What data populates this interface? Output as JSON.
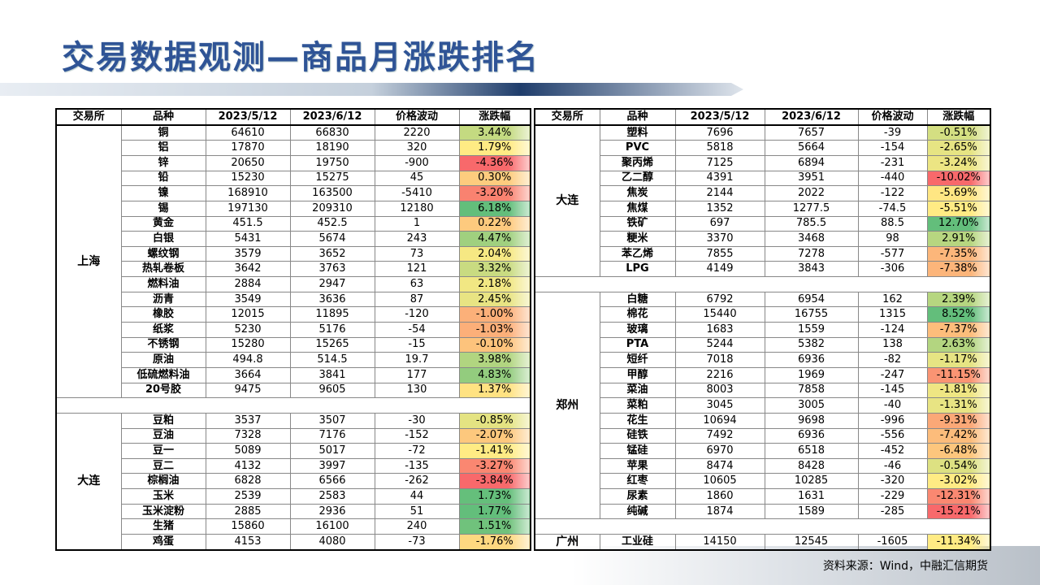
{
  "header": {
    "title": "交易数据观测—商品月涨跌排名"
  },
  "tables": [
    {
      "columns": [
        "交易所",
        "品种",
        "2023/5/12",
        "2023/6/12",
        "价格波动",
        "涨跌幅"
      ],
      "groups": [
        {
          "exchange": "上海",
          "rows": [
            [
              "铜",
              "64610",
              "66830",
              "2220",
              "3.44%"
            ],
            [
              "铝",
              "17870",
              "18190",
              "320",
              "1.79%"
            ],
            [
              "锌",
              "20650",
              "19750",
              "-900",
              "-4.36%"
            ],
            [
              "铅",
              "15230",
              "15275",
              "45",
              "0.30%"
            ],
            [
              "镍",
              "168910",
              "163500",
              "-5410",
              "-3.20%"
            ],
            [
              "锡",
              "197130",
              "209310",
              "12180",
              "6.18%"
            ],
            [
              "黄金",
              "451.5",
              "452.5",
              "1",
              "0.22%"
            ],
            [
              "白银",
              "5431",
              "5674",
              "243",
              "4.47%"
            ],
            [
              "螺纹钢",
              "3579",
              "3652",
              "73",
              "2.04%"
            ],
            [
              "热轧卷板",
              "3642",
              "3763",
              "121",
              "3.32%"
            ],
            [
              "燃料油",
              "2884",
              "2947",
              "63",
              "2.18%"
            ],
            [
              "沥青",
              "3549",
              "3636",
              "87",
              "2.45%"
            ],
            [
              "橡胶",
              "12015",
              "11895",
              "-120",
              "-1.00%"
            ],
            [
              "纸浆",
              "5230",
              "5176",
              "-54",
              "-1.03%"
            ],
            [
              "不锈钢",
              "15280",
              "15265",
              "-15",
              "-0.10%"
            ],
            [
              "原油",
              "494.8",
              "514.5",
              "19.7",
              "3.98%"
            ],
            [
              "低硫燃料油",
              "3664",
              "3841",
              "177",
              "4.83%"
            ],
            [
              "20号胶",
              "9475",
              "9605",
              "130",
              "1.37%"
            ]
          ]
        },
        {
          "exchange": "大连",
          "rows": [
            [
              "豆粕",
              "3537",
              "3507",
              "-30",
              "-0.85%"
            ],
            [
              "豆油",
              "7328",
              "7176",
              "-152",
              "-2.07%"
            ],
            [
              "豆一",
              "5089",
              "5017",
              "-72",
              "-1.41%"
            ],
            [
              "豆二",
              "4132",
              "3997",
              "-135",
              "-3.27%"
            ],
            [
              "棕榈油",
              "6828",
              "6566",
              "-262",
              "-3.84%"
            ],
            [
              "玉米",
              "2539",
              "2583",
              "44",
              "1.73%"
            ],
            [
              "玉米淀粉",
              "2885",
              "2936",
              "51",
              "1.77%"
            ],
            [
              "生猪",
              "15860",
              "16100",
              "240",
              "1.51%"
            ],
            [
              "鸡蛋",
              "4153",
              "4080",
              "-73",
              "-1.76%"
            ]
          ]
        }
      ]
    },
    {
      "columns": [
        "交易所",
        "品种",
        "2023/5/12",
        "2023/6/12",
        "价格波动",
        "涨跌幅"
      ],
      "groups": [
        {
          "exchange": "大连",
          "rows": [
            [
              "塑料",
              "7696",
              "7657",
              "-39",
              "-0.51%"
            ],
            [
              "PVC",
              "5818",
              "5664",
              "-154",
              "-2.65%"
            ],
            [
              "聚丙烯",
              "7125",
              "6894",
              "-231",
              "-3.24%"
            ],
            [
              "乙二醇",
              "4391",
              "3951",
              "-440",
              "-10.02%"
            ],
            [
              "焦炭",
              "2144",
              "2022",
              "-122",
              "-5.69%"
            ],
            [
              "焦煤",
              "1352",
              "1277.5",
              "-74.5",
              "-5.51%"
            ],
            [
              "铁矿",
              "697",
              "785.5",
              "88.5",
              "12.70%"
            ],
            [
              "粳米",
              "3370",
              "3468",
              "98",
              "2.91%"
            ],
            [
              "苯乙烯",
              "7855",
              "7278",
              "-577",
              "-7.35%"
            ],
            [
              "LPG",
              "4149",
              "3843",
              "-306",
              "-7.38%"
            ]
          ]
        },
        {
          "exchange": "郑州",
          "rows": [
            [
              "白糖",
              "6792",
              "6954",
              "162",
              "2.39%"
            ],
            [
              "棉花",
              "15440",
              "16755",
              "1315",
              "8.52%"
            ],
            [
              "玻璃",
              "1683",
              "1559",
              "-124",
              "-7.37%"
            ],
            [
              "PTA",
              "5244",
              "5382",
              "138",
              "2.63%"
            ],
            [
              "短纤",
              "7018",
              "6936",
              "-82",
              "-1.17%"
            ],
            [
              "甲醇",
              "2216",
              "1969",
              "-247",
              "-11.15%"
            ],
            [
              "菜油",
              "8003",
              "7858",
              "-145",
              "-1.81%"
            ],
            [
              "菜粕",
              "3045",
              "3005",
              "-40",
              "-1.31%"
            ],
            [
              "花生",
              "10694",
              "9698",
              "-996",
              "-9.31%"
            ],
            [
              "硅铁",
              "7492",
              "6936",
              "-556",
              "-7.42%"
            ],
            [
              "锰硅",
              "6970",
              "6518",
              "-452",
              "-6.48%"
            ],
            [
              "苹果",
              "8474",
              "8428",
              "-46",
              "-0.54%"
            ],
            [
              "红枣",
              "10605",
              "10285",
              "-320",
              "-3.02%"
            ],
            [
              "尿素",
              "1860",
              "1631",
              "-229",
              "-12.31%"
            ],
            [
              "纯碱",
              "1874",
              "1589",
              "-285",
              "-15.21%"
            ]
          ]
        },
        {
          "exchange": "广州",
          "rows": [
            [
              "工业硅",
              "14150",
              "12545",
              "-1605",
              "-11.34%"
            ]
          ]
        }
      ]
    }
  ],
  "source": "资料来源：Wind，中融汇信期货"
}
